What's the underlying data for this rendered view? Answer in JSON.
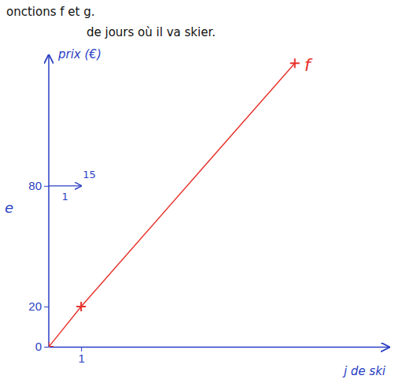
{
  "chart_data": {
    "type": "line",
    "title": "onctions f et g.",
    "subtitle": "de jours où il va skier.",
    "x_label": "j de ski",
    "y_label": "prix (€)",
    "x": [
      0,
      1,
      7.6
    ],
    "series": [
      {
        "name": "f",
        "color": "#e8312a",
        "values": [
          0,
          20,
          141
        ],
        "marker": "cross"
      }
    ],
    "xlim": [
      0,
      10.5
    ],
    "ylim": [
      0,
      145
    ],
    "xticks": [
      1
    ],
    "yticks": [
      0,
      20,
      80
    ],
    "annotations": [
      {
        "text": "15"
      },
      {
        "text": "1"
      },
      {
        "text": "e"
      }
    ],
    "grid": false
  }
}
